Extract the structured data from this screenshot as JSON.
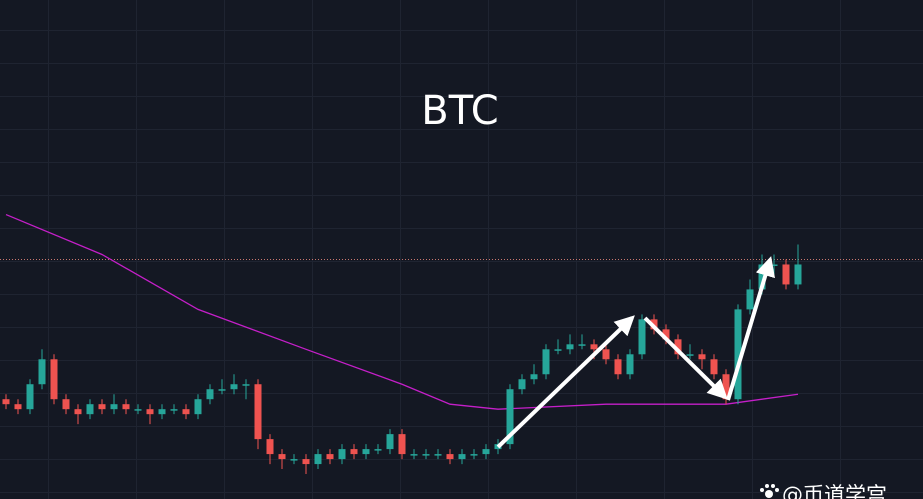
{
  "chart_data": {
    "type": "candlestick",
    "title": "BTC",
    "watermark": "@币道学宫",
    "open": [
      20,
      19,
      18,
      23,
      28,
      20,
      18,
      17,
      19,
      18,
      19,
      18,
      18,
      17,
      18,
      18,
      17,
      20,
      22,
      22,
      23,
      23,
      12,
      9,
      8,
      8,
      7,
      9,
      8,
      10,
      9,
      10,
      10,
      13,
      9,
      9,
      9,
      9,
      8,
      9,
      9,
      10,
      11,
      22,
      24,
      25,
      30,
      30,
      31,
      31,
      30,
      28,
      25,
      29,
      36,
      34,
      32,
      29,
      29,
      28,
      25,
      20,
      38,
      42,
      47,
      47,
      43
    ],
    "high": [
      21,
      20,
      24,
      30,
      29,
      21,
      19,
      20,
      20,
      21,
      20,
      19,
      19,
      19,
      19,
      19,
      21,
      23,
      24,
      25,
      24,
      24,
      13,
      10,
      9,
      9,
      10,
      10,
      11,
      11,
      11,
      11,
      14,
      14,
      10,
      10,
      10,
      10,
      10,
      10,
      11,
      12,
      23,
      25,
      27,
      31,
      32,
      33,
      33,
      32,
      31,
      29,
      30,
      37,
      37,
      35,
      33,
      31,
      30,
      29,
      26,
      39,
      44,
      49,
      49,
      48,
      51
    ],
    "low": [
      18,
      17,
      17,
      22,
      19,
      17,
      15,
      16,
      17,
      17,
      17,
      17,
      15,
      16,
      17,
      16,
      16,
      19,
      21,
      21,
      20,
      10,
      7,
      6,
      7,
      5,
      6,
      7,
      7,
      8,
      8,
      9,
      9,
      8,
      8,
      8,
      8,
      7,
      7,
      8,
      8,
      9,
      10,
      21,
      23,
      24,
      29,
      29,
      30,
      28,
      27,
      24,
      24,
      28,
      33,
      31,
      28,
      28,
      26,
      24,
      19,
      19,
      37,
      41,
      45,
      42,
      42
    ],
    "close": [
      19,
      18,
      23,
      28,
      20,
      18,
      17,
      19,
      18,
      19,
      18,
      18,
      17,
      18,
      18,
      17,
      20,
      22,
      22,
      23,
      23,
      12,
      9,
      8,
      8,
      7,
      9,
      8,
      10,
      9,
      10,
      10,
      13,
      9,
      9,
      9,
      9,
      8,
      9,
      9,
      10,
      11,
      22,
      24,
      25,
      30,
      30,
      31,
      31,
      30,
      28,
      25,
      29,
      36,
      34,
      32,
      29,
      29,
      28,
      25,
      20,
      38,
      42,
      47,
      47,
      43,
      47
    ],
    "up_color": "#26a69a",
    "down_color": "#ef5350",
    "moving_average": {
      "color": "#c51fc9",
      "x": [
        0,
        8,
        16,
        25,
        33,
        37,
        41,
        50,
        60,
        66
      ],
      "values": [
        57,
        49,
        38,
        30,
        23,
        19,
        18,
        19,
        19,
        21
      ]
    },
    "price_line": {
      "value": 48,
      "color": "#c9776f"
    },
    "ylim": [
      0,
      100
    ]
  }
}
